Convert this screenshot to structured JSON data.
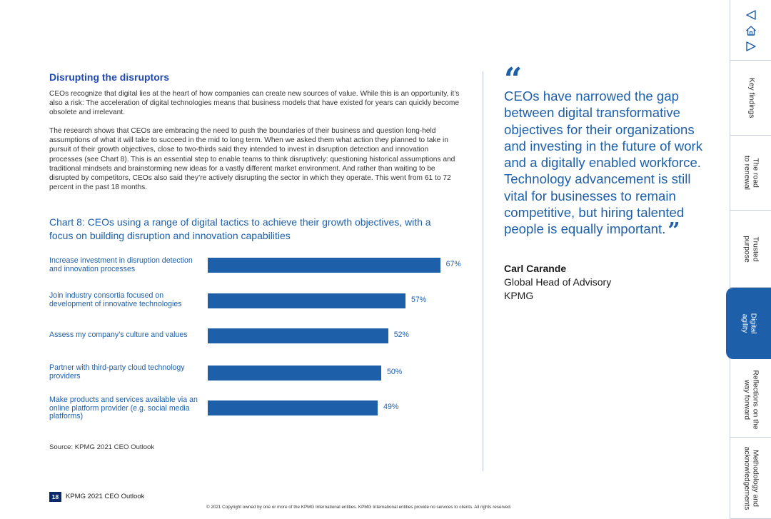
{
  "section": {
    "heading": "Disrupting the disruptors",
    "para1": "CEOs recognize that digital lies at the heart of how companies can create new sources of value. While this is an opportunity, it’s also a risk: The acceleration of digital technologies means that business models that have existed for years can quickly become obsolete and irrelevant.",
    "para2": "The research shows that CEOs are embracing the need to push the boundaries of their business and question long-held assumptions of what it will take to succeed in the mid to long term. When we asked them what action they planned to take in pursuit of their growth objectives, close to two-thirds said they intended to invest in disruption detection and innovation processes (see Chart 8). This is an essential step to enable teams to think disruptively: questioning historical assumptions and traditional mindsets and brainstorming new ideas for a vastly different market environment. And rather than waiting to be disrupted by competitors, CEOs also said they’re actively disrupting the sector in which they operate. This went from 61 to 72 percent in the past 18 months."
  },
  "chart_data": {
    "type": "bar",
    "orientation": "horizontal",
    "title": "Chart 8: CEOs using a range of digital tactics to achieve their growth objectives, with a focus on building disruption and innovation capabilities",
    "categories": [
      "Increase investment in disruption detection and innovation processes",
      "Join industry consortia focused on development of innovative technologies",
      "Assess my company’s culture and values",
      "Partner with third-party cloud technology providers",
      "Make products and services available via an online platform provider (e.g. social media platforms)"
    ],
    "values": [
      67,
      57,
      52,
      50,
      49
    ],
    "value_labels": [
      "67%",
      "57%",
      "52%",
      "50%",
      "49%"
    ],
    "unit": "%",
    "color": "#1e5fa9",
    "source": "Source: KPMG 2021 CEO Outlook"
  },
  "quote": {
    "open_mark": "“",
    "text": "CEOs have narrowed the gap between digital transformative objectives for their organizations and investing in the future of work and a digitally enabled workforce. Technology advancement is still vital for businesses to remain competitive, but hiring talented people is equally important.",
    "close_mark": "”",
    "name": "Carl Carande",
    "role": "Global Head of Advisory",
    "org": "KPMG"
  },
  "footer": {
    "page_number": "18",
    "title": "KPMG 2021 CEO Outlook",
    "copyright": "© 2021 Copyright owned by one or more of the KPMG International entities. KPMG International entities provide no services to clients. All rights reserved."
  },
  "sidebar": {
    "icons": [
      "back-arrow-icon",
      "home-icon",
      "forward-arrow-icon"
    ],
    "tabs": [
      {
        "label": "Key findings",
        "active": false
      },
      {
        "label": "The road\nto renewal",
        "active": false
      },
      {
        "label": "Trusted\npurpose",
        "active": false
      },
      {
        "label": "Digital\nagility",
        "active": true
      },
      {
        "label": "Reflections on the\nway forward",
        "active": false
      },
      {
        "label": "Methodology and\nacknowledgements",
        "active": false
      }
    ],
    "accent_color": "#1e5fa9"
  }
}
